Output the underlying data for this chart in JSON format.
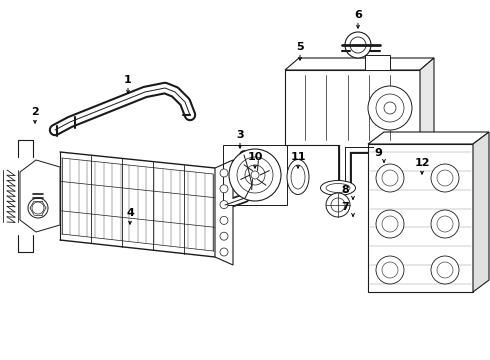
{
  "bg_color": "#ffffff",
  "line_color": "#1a1a1a",
  "figsize": [
    4.9,
    3.6
  ],
  "dpi": 100,
  "labels": {
    "1": [
      1.18,
      2.62,
      0.0,
      -0.1
    ],
    "2": [
      0.28,
      2.38,
      0.0,
      -0.1
    ],
    "3": [
      2.42,
      2.15,
      0.06,
      -0.1
    ],
    "4": [
      1.25,
      1.38,
      0.0,
      -0.1
    ],
    "5": [
      3.05,
      3.0,
      0.0,
      -0.1
    ],
    "6": [
      3.62,
      3.42,
      0.0,
      -0.1
    ],
    "7": [
      3.45,
      1.62,
      0.08,
      -0.1
    ],
    "8": [
      3.45,
      1.78,
      0.08,
      -0.1
    ],
    "9": [
      3.82,
      1.98,
      0.06,
      -0.1
    ],
    "10": [
      2.6,
      1.8,
      0.0,
      -0.1
    ],
    "11": [
      2.98,
      1.8,
      0.0,
      -0.1
    ],
    "12": [
      4.22,
      1.88,
      0.0,
      -0.1
    ]
  }
}
